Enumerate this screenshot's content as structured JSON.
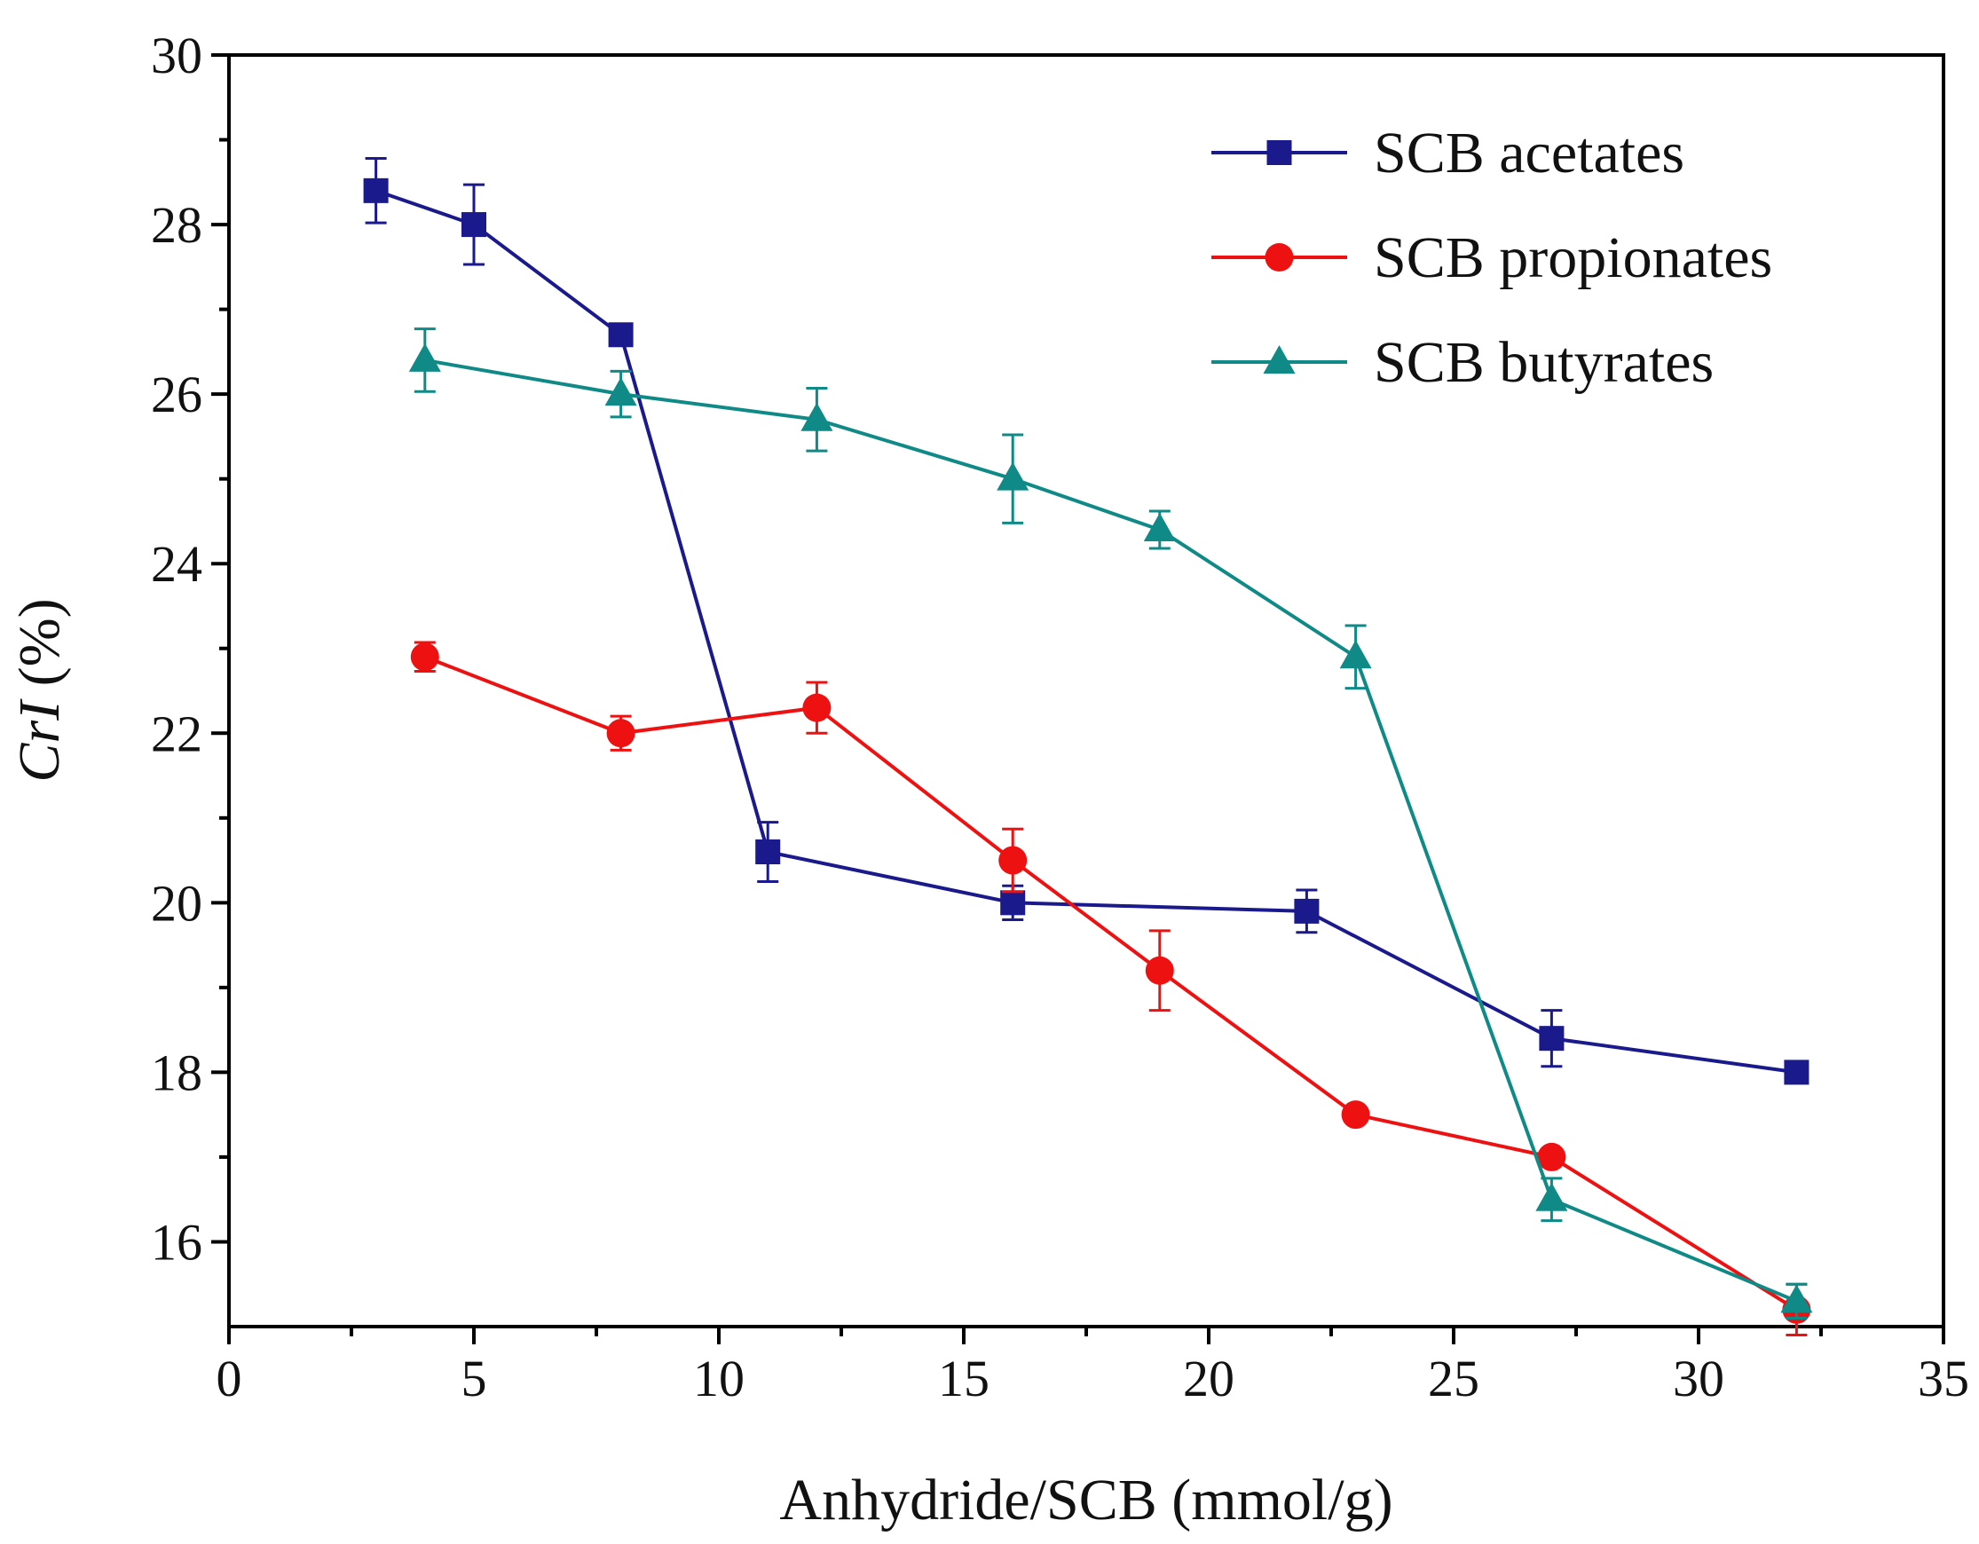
{
  "chart_data": {
    "type": "line",
    "title": "",
    "xlabel": "Anhydride/SCB (mmol/g)",
    "ylabel_italic": "CrI",
    "ylabel_unit": " (%)",
    "xlim": [
      0,
      35
    ],
    "ylim": [
      15,
      30
    ],
    "xticks": [
      0,
      5,
      10,
      15,
      20,
      25,
      30,
      35
    ],
    "yticks": [
      16,
      18,
      20,
      22,
      24,
      26,
      28,
      30
    ],
    "grid": false,
    "legend_position": "top-right",
    "series": [
      {
        "name": "SCB acetates",
        "color": "#1a1a8c",
        "marker": "square",
        "x": [
          3,
          5,
          8,
          11,
          16,
          22,
          27,
          32
        ],
        "y": [
          28.4,
          28.0,
          26.7,
          20.6,
          20.0,
          19.9,
          18.4,
          18.0
        ],
        "err": [
          0.38,
          0.47,
          0.0,
          0.35,
          0.2,
          0.25,
          0.33,
          0.0
        ]
      },
      {
        "name": "SCB propionates",
        "color": "#ee1111",
        "marker": "circle",
        "x": [
          4,
          8,
          12,
          16,
          19,
          23,
          27,
          32
        ],
        "y": [
          22.9,
          22.0,
          22.3,
          20.5,
          19.2,
          17.5,
          17.0,
          15.2
        ],
        "err": [
          0.17,
          0.2,
          0.3,
          0.37,
          0.47,
          0.0,
          0.0,
          0.3
        ]
      },
      {
        "name": "SCB butyrates",
        "color": "#0f8a86",
        "marker": "triangle",
        "x": [
          4,
          8,
          12,
          16,
          19,
          23,
          27,
          32
        ],
        "y": [
          26.4,
          26.0,
          25.7,
          25.0,
          24.4,
          22.9,
          16.5,
          15.3
        ],
        "err": [
          0.37,
          0.27,
          0.37,
          0.52,
          0.22,
          0.37,
          0.25,
          0.2
        ]
      }
    ]
  }
}
